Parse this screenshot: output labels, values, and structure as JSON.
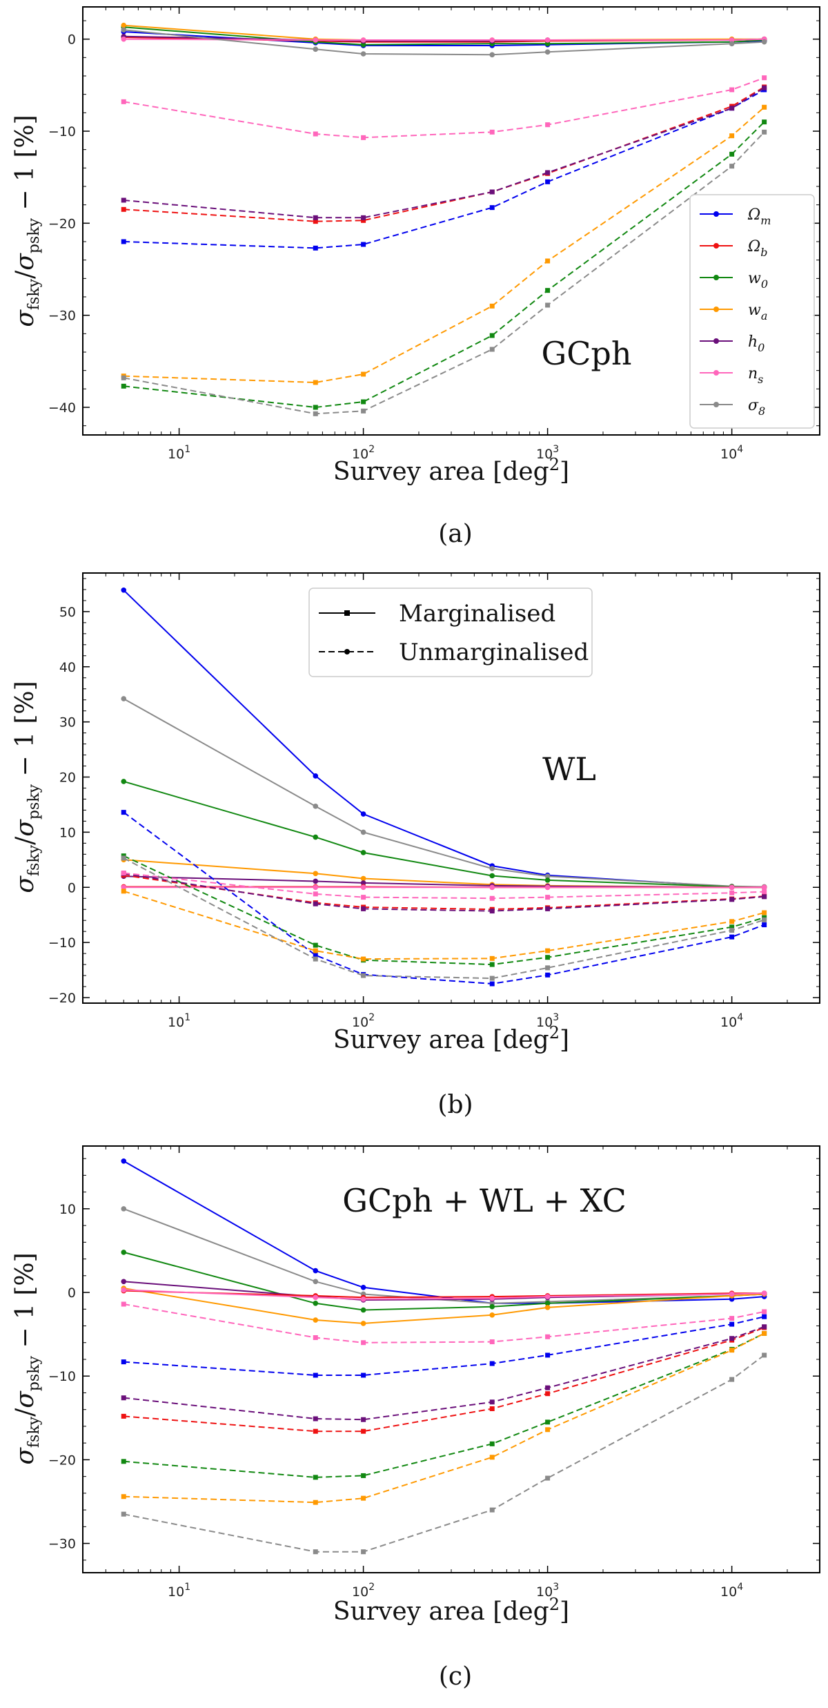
{
  "colors": {
    "Omega_m": "#0000ee",
    "Omega_b": "#ee1111",
    "w0": "#118811",
    "wa": "#ff9900",
    "h0": "#6a0f7a",
    "ns": "#ff66bb",
    "sigma8": "#8a8a8a"
  },
  "style_legend": {
    "marginalised": "Marginalised",
    "unmarginalised": "Unmarginalised"
  },
  "chart_data": [
    {
      "type": "line",
      "panel_label": "GCph",
      "caption": "(a)",
      "xlabel_main": "Survey area [deg",
      "xlabel_sup": "2",
      "xlabel_end": "]",
      "ylabel": "σfsky/σpsky − 1 [%]",
      "xscale": "log",
      "xlim": [
        3,
        30000
      ],
      "ylim": [
        -43,
        3.5
      ],
      "yticks": [
        0,
        -10,
        -20,
        -30,
        -40
      ],
      "xticks": [
        {
          "value": 10,
          "base": "10",
          "exp": "1"
        },
        {
          "value": 100,
          "base": "10",
          "exp": "2"
        },
        {
          "value": 1000,
          "base": "10",
          "exp": "3"
        },
        {
          "value": 10000,
          "base": "10",
          "exp": "4"
        }
      ],
      "x": [
        5,
        55,
        100,
        500,
        1000,
        10000,
        15000
      ],
      "legend_entries": [
        "Ωm",
        "Ωb",
        "w0",
        "wa",
        "h0",
        "ns",
        "σ8"
      ],
      "series": [
        {
          "name": "Ωm",
          "key": "Omega_m",
          "style": "marginalised",
          "values": [
            0.8,
            -0.4,
            -0.7,
            -0.7,
            -0.6,
            -0.3,
            -0.2
          ]
        },
        {
          "name": "Ωb",
          "key": "Omega_b",
          "style": "marginalised",
          "values": [
            0.2,
            -0.2,
            -0.3,
            -0.3,
            -0.2,
            -0.1,
            0.0
          ]
        },
        {
          "name": "w0",
          "key": "w0",
          "style": "marginalised",
          "values": [
            1.3,
            -0.3,
            -0.6,
            -0.5,
            -0.5,
            -0.3,
            -0.1
          ]
        },
        {
          "name": "wa",
          "key": "wa",
          "style": "marginalised",
          "values": [
            1.5,
            0.0,
            -0.1,
            -0.1,
            -0.1,
            0.0,
            0.0
          ]
        },
        {
          "name": "h0",
          "key": "h0",
          "style": "marginalised",
          "values": [
            0.3,
            -0.1,
            -0.2,
            -0.2,
            -0.1,
            -0.1,
            0.0
          ]
        },
        {
          "name": "ns",
          "key": "ns",
          "style": "marginalised",
          "values": [
            0.0,
            -0.1,
            -0.1,
            -0.1,
            -0.1,
            -0.1,
            0.0
          ]
        },
        {
          "name": "σ8",
          "key": "sigma8",
          "style": "marginalised",
          "values": [
            1.0,
            -1.1,
            -1.6,
            -1.7,
            -1.4,
            -0.5,
            -0.3
          ]
        },
        {
          "name": "Ωm",
          "key": "Omega_m",
          "style": "unmarginalised",
          "values": [
            -22.0,
            -22.7,
            -22.3,
            -18.3,
            -15.5,
            -7.5,
            -5.5
          ]
        },
        {
          "name": "Ωb",
          "key": "Omega_b",
          "style": "unmarginalised",
          "values": [
            -18.5,
            -19.8,
            -19.7,
            -16.6,
            -14.6,
            -7.3,
            -5.2
          ]
        },
        {
          "name": "w0",
          "key": "w0",
          "style": "unmarginalised",
          "values": [
            -37.7,
            -40.0,
            -39.4,
            -32.2,
            -27.3,
            -12.5,
            -9.0
          ]
        },
        {
          "name": "wa",
          "key": "wa",
          "style": "unmarginalised",
          "values": [
            -36.6,
            -37.3,
            -36.4,
            -29.0,
            -24.1,
            -10.5,
            -7.4
          ]
        },
        {
          "name": "h0",
          "key": "h0",
          "style": "unmarginalised",
          "values": [
            -17.5,
            -19.4,
            -19.4,
            -16.6,
            -14.5,
            -7.5,
            -5.3
          ]
        },
        {
          "name": "ns",
          "key": "ns",
          "style": "unmarginalised",
          "values": [
            -6.8,
            -10.3,
            -10.7,
            -10.1,
            -9.3,
            -5.5,
            -4.2
          ]
        },
        {
          "name": "σ8",
          "key": "sigma8",
          "style": "unmarginalised",
          "values": [
            -36.8,
            -40.7,
            -40.4,
            -33.7,
            -28.9,
            -13.8,
            -10.1
          ]
        }
      ]
    },
    {
      "type": "line",
      "panel_label": "WL",
      "caption": "(b)",
      "xlabel_main": "Survey area [deg",
      "xlabel_sup": "2",
      "xlabel_end": "]",
      "ylabel": "σfsky/σpsky − 1 [%]",
      "xscale": "log",
      "xlim": [
        3,
        30000
      ],
      "ylim": [
        -21,
        57
      ],
      "yticks": [
        50,
        40,
        30,
        20,
        10,
        0,
        -10,
        -20
      ],
      "xticks": [
        {
          "value": 10,
          "base": "10",
          "exp": "1"
        },
        {
          "value": 100,
          "base": "10",
          "exp": "2"
        },
        {
          "value": 1000,
          "base": "10",
          "exp": "3"
        },
        {
          "value": 10000,
          "base": "10",
          "exp": "4"
        }
      ],
      "x": [
        5,
        55,
        100,
        500,
        1000,
        10000,
        15000
      ],
      "series": [
        {
          "name": "Ωm",
          "key": "Omega_m",
          "style": "marginalised",
          "values": [
            53.9,
            20.2,
            13.3,
            3.9,
            2.2,
            0.1,
            0.0
          ]
        },
        {
          "name": "σ8",
          "key": "sigma8",
          "style": "marginalised",
          "values": [
            34.2,
            14.7,
            10.0,
            3.4,
            2.0,
            0.2,
            0.1
          ]
        },
        {
          "name": "w0",
          "key": "w0",
          "style": "marginalised",
          "values": [
            19.2,
            9.1,
            6.3,
            2.1,
            1.3,
            0.1,
            0.0
          ]
        },
        {
          "name": "wa",
          "key": "wa",
          "style": "marginalised",
          "values": [
            5.0,
            2.5,
            1.6,
            0.5,
            0.3,
            0.0,
            0.0
          ]
        },
        {
          "name": "h0",
          "key": "h0",
          "style": "marginalised",
          "values": [
            2.0,
            1.1,
            0.8,
            0.3,
            0.2,
            0.0,
            0.0
          ]
        },
        {
          "name": "Ωb",
          "key": "Omega_b",
          "style": "marginalised",
          "values": [
            0.1,
            0.1,
            0.1,
            0.0,
            0.0,
            0.0,
            0.0
          ]
        },
        {
          "name": "ns",
          "key": "ns",
          "style": "marginalised",
          "values": [
            0.0,
            0.0,
            0.0,
            0.0,
            0.0,
            0.0,
            0.0
          ]
        },
        {
          "name": "Ωm",
          "key": "Omega_m",
          "style": "unmarginalised",
          "values": [
            13.6,
            -12.3,
            -15.8,
            -17.5,
            -15.9,
            -9.0,
            -6.8
          ]
        },
        {
          "name": "Ωb",
          "key": "Omega_b",
          "style": "unmarginalised",
          "values": [
            2.2,
            -2.8,
            -3.6,
            -4.0,
            -3.7,
            -2.1,
            -1.6
          ]
        },
        {
          "name": "w0",
          "key": "w0",
          "style": "unmarginalised",
          "values": [
            5.7,
            -10.5,
            -13.2,
            -14.0,
            -12.7,
            -7.2,
            -5.5
          ]
        },
        {
          "name": "wa",
          "key": "wa",
          "style": "unmarginalised",
          "values": [
            -0.7,
            -11.5,
            -13.0,
            -12.9,
            -11.5,
            -6.2,
            -4.6
          ]
        },
        {
          "name": "h0",
          "key": "h0",
          "style": "unmarginalised",
          "values": [
            2.5,
            -3.0,
            -3.9,
            -4.3,
            -3.9,
            -2.2,
            -1.7
          ]
        },
        {
          "name": "ns",
          "key": "ns",
          "style": "unmarginalised",
          "values": [
            2.6,
            -1.2,
            -1.8,
            -2.0,
            -1.8,
            -1.0,
            -0.8
          ]
        },
        {
          "name": "σ8",
          "key": "sigma8",
          "style": "unmarginalised",
          "values": [
            5.3,
            -13.0,
            -16.0,
            -16.5,
            -14.6,
            -7.8,
            -5.9
          ]
        }
      ]
    },
    {
      "type": "line",
      "panel_label": "GCph + WL + XC",
      "caption": "(c)",
      "xlabel_main": "Survey area [deg",
      "xlabel_sup": "2",
      "xlabel_end": "]",
      "ylabel": "σfsky/σpsky − 1 [%]",
      "xscale": "log",
      "xlim": [
        3,
        30000
      ],
      "ylim": [
        -33.5,
        17.5
      ],
      "yticks": [
        10,
        0,
        -10,
        -20,
        -30
      ],
      "xticks": [
        {
          "value": 10,
          "base": "10",
          "exp": "1"
        },
        {
          "value": 100,
          "base": "10",
          "exp": "2"
        },
        {
          "value": 1000,
          "base": "10",
          "exp": "3"
        },
        {
          "value": 10000,
          "base": "10",
          "exp": "4"
        }
      ],
      "x": [
        5,
        55,
        100,
        500,
        1000,
        10000,
        15000
      ],
      "series": [
        {
          "name": "Ωm",
          "key": "Omega_m",
          "style": "marginalised",
          "values": [
            15.7,
            2.6,
            0.6,
            -1.3,
            -1.3,
            -0.8,
            -0.5
          ]
        },
        {
          "name": "σ8",
          "key": "sigma8",
          "style": "marginalised",
          "values": [
            10.0,
            1.3,
            -0.2,
            -1.3,
            -1.1,
            -0.4,
            -0.2
          ]
        },
        {
          "name": "w0",
          "key": "w0",
          "style": "marginalised",
          "values": [
            4.8,
            -1.3,
            -2.1,
            -1.7,
            -1.3,
            -0.4,
            -0.2
          ]
        },
        {
          "name": "wa",
          "key": "wa",
          "style": "marginalised",
          "values": [
            0.5,
            -3.3,
            -3.7,
            -2.7,
            -1.8,
            -0.4,
            -0.2
          ]
        },
        {
          "name": "h0",
          "key": "h0",
          "style": "marginalised",
          "values": [
            1.3,
            -0.5,
            -0.9,
            -0.8,
            -0.6,
            -0.2,
            -0.1
          ]
        },
        {
          "name": "Ωb",
          "key": "Omega_b",
          "style": "marginalised",
          "values": [
            0.2,
            -0.4,
            -0.6,
            -0.5,
            -0.4,
            -0.1,
            -0.1
          ]
        },
        {
          "name": "ns",
          "key": "ns",
          "style": "marginalised",
          "values": [
            0.3,
            -0.6,
            -0.8,
            -0.7,
            -0.5,
            -0.2,
            -0.1
          ]
        },
        {
          "name": "Ωm",
          "key": "Omega_m",
          "style": "unmarginalised",
          "values": [
            -8.3,
            -9.9,
            -9.9,
            -8.5,
            -7.5,
            -3.8,
            -2.9
          ]
        },
        {
          "name": "Ωb",
          "key": "Omega_b",
          "style": "unmarginalised",
          "values": [
            -14.8,
            -16.6,
            -16.6,
            -13.9,
            -12.1,
            -5.7,
            -4.2
          ]
        },
        {
          "name": "w0",
          "key": "w0",
          "style": "unmarginalised",
          "values": [
            -20.2,
            -22.1,
            -21.9,
            -18.1,
            -15.5,
            -6.8,
            -4.9
          ]
        },
        {
          "name": "wa",
          "key": "wa",
          "style": "unmarginalised",
          "values": [
            -24.4,
            -25.1,
            -24.6,
            -19.7,
            -16.4,
            -6.9,
            -4.9
          ]
        },
        {
          "name": "h0",
          "key": "h0",
          "style": "unmarginalised",
          "values": [
            -12.6,
            -15.1,
            -15.2,
            -13.1,
            -11.4,
            -5.5,
            -4.1
          ]
        },
        {
          "name": "ns",
          "key": "ns",
          "style": "unmarginalised",
          "values": [
            -1.4,
            -5.4,
            -6.0,
            -5.9,
            -5.3,
            -3.1,
            -2.3
          ]
        },
        {
          "name": "σ8",
          "key": "sigma8",
          "style": "unmarginalised",
          "values": [
            -26.5,
            -31.0,
            -31.0,
            -26.0,
            -22.2,
            -10.4,
            -7.5
          ]
        }
      ]
    }
  ]
}
